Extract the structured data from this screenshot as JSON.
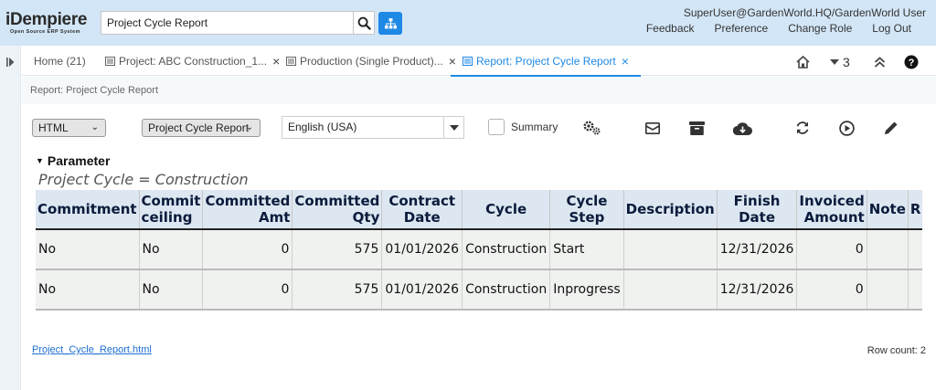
{
  "header": {
    "logo_main": "iDempiere",
    "logo_sub": "Open Source ERP System",
    "search_value": "Project Cycle Report",
    "user": "SuperUser@GardenWorld.HQ/GardenWorld User",
    "links": [
      "Feedback",
      "Preference",
      "Change Role",
      "Log Out"
    ]
  },
  "tabs": [
    {
      "label": "Home (21)"
    },
    {
      "label": "Project: ABC Construction_1..."
    },
    {
      "label": "Production (Single Product)..."
    },
    {
      "label": "Report: Project Cycle Report"
    }
  ],
  "tab_tools": {
    "window_count": "3"
  },
  "content": {
    "title": "Report: Project Cycle Report",
    "format_select": "HTML",
    "report_select": "Project Cycle Report",
    "language": "English (USA)",
    "summary_label": "Summary",
    "parameter_heading": "Parameter",
    "parameter_line": "Project Cycle = Construction"
  },
  "report": {
    "columns": [
      {
        "line1": "Commitment",
        "line2": ""
      },
      {
        "line1": "Commit",
        "line2": "ceiling"
      },
      {
        "line1": "Committed",
        "line2": "Amt"
      },
      {
        "line1": "Committed",
        "line2": "Qty"
      },
      {
        "line1": "Contract",
        "line2": "Date"
      },
      {
        "line1": "Cycle",
        "line2": ""
      },
      {
        "line1": "Cycle",
        "line2": "Step"
      },
      {
        "line1": "Description",
        "line2": ""
      },
      {
        "line1": "Finish",
        "line2": "Date"
      },
      {
        "line1": "Invoiced",
        "line2": "Amount"
      },
      {
        "line1": "Note",
        "line2": ""
      },
      {
        "line1": "R",
        "line2": ""
      }
    ],
    "rows": [
      [
        "No",
        "No",
        "0",
        "575",
        "01/01/2026",
        "Construction",
        "Start",
        "",
        "12/31/2026",
        "0",
        "",
        ""
      ],
      [
        "No",
        "No",
        "0",
        "575",
        "01/01/2026",
        "Construction",
        "Inprogress",
        "",
        "12/31/2026",
        "0",
        "",
        ""
      ]
    ],
    "file_link": "Project_Cycle_Report.html",
    "row_count": "Row count: 2"
  },
  "colors": {
    "accent": "#1e88e5",
    "header_bg": "#d3e6f7",
    "table_header_bg": "#dce7f1"
  }
}
